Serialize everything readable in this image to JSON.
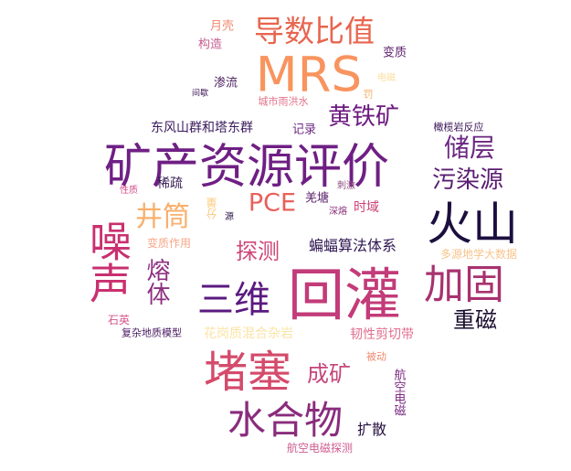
{
  "word_cloud": {
    "words": [
      {
        "text": "MRS",
        "color": "#f8945e"
      },
      {
        "text": "矿产资源评价",
        "color": "#6f1f84"
      },
      {
        "text": "回灌",
        "color": "#c33b79"
      },
      {
        "text": "火山",
        "color": "#1c0f3f"
      },
      {
        "text": "堵塞",
        "color": "#d44b6b"
      },
      {
        "text": "噪声",
        "color": "#c9306f"
      },
      {
        "text": "加固",
        "color": "#a8326f"
      },
      {
        "text": "水合物",
        "color": "#8a2c7d"
      },
      {
        "text": "三维",
        "color": "#5a1a80"
      },
      {
        "text": "导数比值",
        "color": "#e8654f"
      },
      {
        "text": "储层",
        "color": "#6b2780"
      },
      {
        "text": "污染源",
        "color": "#5b1d72"
      },
      {
        "text": "黄铁矿",
        "color": "#6d1a80"
      },
      {
        "text": "井筒",
        "color": "#f9b06d"
      },
      {
        "text": "PCE",
        "color": "#e9605c"
      },
      {
        "text": "探测",
        "color": "#cf4677"
      },
      {
        "text": "熔体",
        "color": "#8e2f82"
      },
      {
        "text": "重磁",
        "color": "#1a0d2e"
      },
      {
        "text": "成矿",
        "color": "#c3477b"
      },
      {
        "text": "蝙蝠算法体系",
        "color": "#2e1550"
      },
      {
        "text": "扩散",
        "color": "#26103f"
      },
      {
        "text": "东风山群和塔东群",
        "color": "#3a1a5c"
      },
      {
        "text": "韧性剪切带",
        "color": "#e0708f"
      },
      {
        "text": "花岗质混合杂岩",
        "color": "#fbe3a4"
      },
      {
        "text": "变质作用",
        "color": "#f6a689"
      },
      {
        "text": "多源地学大数据",
        "color": "#f8c48b"
      },
      {
        "text": "航空电磁探测",
        "color": "#cf5e92"
      },
      {
        "text": "航空电磁",
        "color": "#7b2a80"
      },
      {
        "text": "稀疏",
        "color": "#32174f"
      },
      {
        "text": "月壳",
        "color": "#f08a70"
      },
      {
        "text": "构造",
        "color": "#c65a8e"
      },
      {
        "text": "变质",
        "color": "#5a1e6b"
      },
      {
        "text": "渗流",
        "color": "#4a1f5f"
      },
      {
        "text": "城市雨洪水",
        "color": "#e2738a"
      },
      {
        "text": "记录",
        "color": "#6b2780"
      },
      {
        "text": "时域",
        "color": "#cc4074"
      },
      {
        "text": "羌塘",
        "color": "#5a1e6b"
      },
      {
        "text": "橄榄岩反应",
        "color": "#3a1656"
      },
      {
        "text": "分量",
        "color": "#fbc97d"
      },
      {
        "text": "石英",
        "color": "#d6568c"
      },
      {
        "text": "复杂地质模型",
        "color": "#4b1a61"
      },
      {
        "text": "被动",
        "color": "#f08a70"
      },
      {
        "text": "电磁",
        "color": "#fbe0a1"
      },
      {
        "text": "间歇",
        "color": "#3a1656"
      },
      {
        "text": "罚",
        "color": "#f4b06b"
      },
      {
        "text": "性质",
        "color": "#d4508d"
      },
      {
        "text": "源",
        "color": "#2b1446"
      },
      {
        "text": "刺激",
        "color": "#8f5080"
      },
      {
        "text": "深熔",
        "color": "#8b2d7a"
      }
    ]
  }
}
